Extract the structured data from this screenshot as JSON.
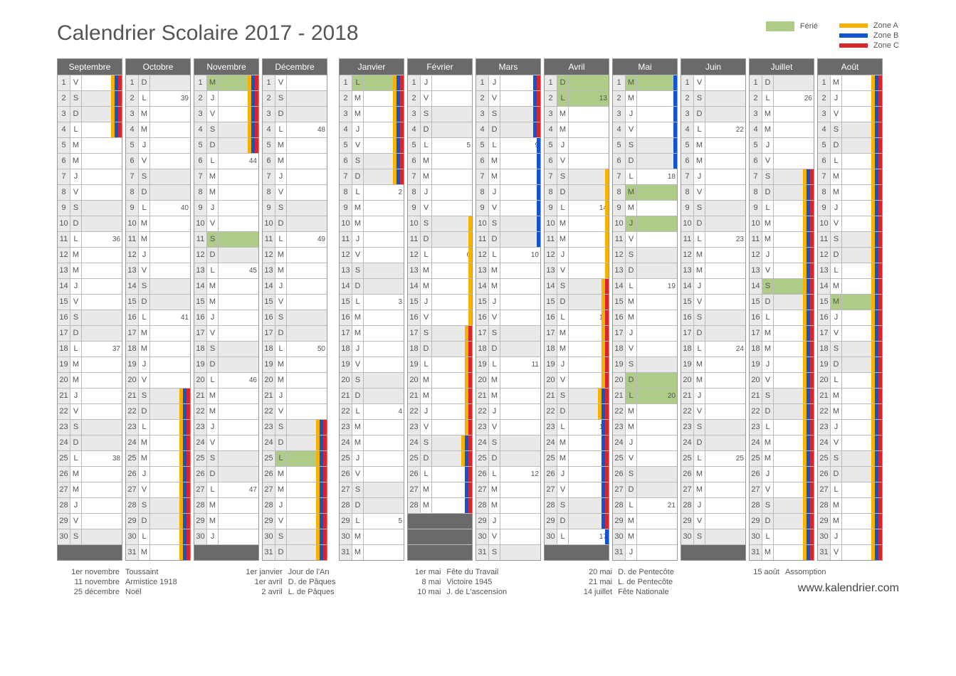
{
  "title": "Calendrier Scolaire 2017 - 2018",
  "legend": {
    "ferie_label": "Férié",
    "ferie_color": "#aecb88",
    "zones": [
      {
        "label": "Zone A",
        "color": "#f9b000"
      },
      {
        "label": "Zone B",
        "color": "#1155cc"
      },
      {
        "label": "Zone C",
        "color": "#d9262c"
      }
    ]
  },
  "colors": {
    "header_bg": "#6a6a6a",
    "weekend_bg": "#e9e9e9",
    "ferie_bg": "#aecb88",
    "border": "#999",
    "zoneA": "#f9b000",
    "zoneB": "#1155cc",
    "zoneC": "#d9262c"
  },
  "dow_letters": [
    "L",
    "M",
    "M",
    "J",
    "V",
    "S",
    "D"
  ],
  "semesters": [
    {
      "months": [
        {
          "name": "Septembre",
          "days": 30,
          "first_dow": 4,
          "first_week": 35,
          "zones": {
            "A": [
              [
                1,
                4
              ]
            ],
            "B": [
              [
                1,
                4
              ]
            ],
            "C": [
              [
                1,
                4
              ]
            ]
          }
        },
        {
          "name": "Octobre",
          "days": 31,
          "first_dow": 6,
          "first_week": 39,
          "zones": {
            "A": [
              [
                21,
                31
              ]
            ],
            "B": [
              [
                21,
                31
              ]
            ],
            "C": [
              [
                21,
                31
              ]
            ]
          }
        },
        {
          "name": "Novembre",
          "days": 30,
          "first_dow": 2,
          "first_week": 44,
          "ferie": [
            1,
            11
          ],
          "zones": {
            "A": [
              [
                1,
                5
              ]
            ],
            "B": [
              [
                1,
                5
              ]
            ],
            "C": [
              [
                1,
                5
              ]
            ]
          }
        },
        {
          "name": "Décembre",
          "days": 31,
          "first_dow": 4,
          "first_week": 48,
          "ferie": [
            25
          ],
          "zones": {
            "A": [
              [
                23,
                31
              ]
            ],
            "B": [
              [
                23,
                31
              ]
            ],
            "C": [
              [
                23,
                31
              ]
            ]
          }
        }
      ]
    },
    {
      "months": [
        {
          "name": "Janvier",
          "days": 31,
          "first_dow": 0,
          "first_week": 1,
          "ferie": [
            1
          ],
          "zones": {
            "A": [
              [
                1,
                7
              ]
            ],
            "B": [
              [
                1,
                7
              ]
            ],
            "C": [
              [
                1,
                7
              ]
            ]
          }
        },
        {
          "name": "Février",
          "days": 28,
          "first_dow": 3,
          "first_week": 5,
          "zones": {
            "A": [
              [
                10,
                25
              ]
            ],
            "B": [
              [
                24,
                28
              ]
            ],
            "C": [
              [
                17,
                28
              ]
            ]
          }
        },
        {
          "name": "Mars",
          "days": 31,
          "first_dow": 3,
          "first_week": 9,
          "zones": {
            "B": [
              [
                1,
                11
              ]
            ],
            "C": [
              [
                1,
                4
              ]
            ]
          }
        },
        {
          "name": "Avril",
          "days": 30,
          "first_dow": 6,
          "first_week": 13,
          "ferie": [
            1,
            2
          ],
          "zones": {
            "A": [
              [
                7,
                22
              ]
            ],
            "B": [
              [
                21,
                30
              ]
            ],
            "C": [
              [
                14,
                29
              ]
            ]
          }
        },
        {
          "name": "Mai",
          "days": 31,
          "first_dow": 1,
          "first_week": 18,
          "ferie": [
            1,
            8,
            10,
            20,
            21
          ],
          "zones": {
            "B": [
              [
                1,
                6
              ]
            ]
          }
        },
        {
          "name": "Juin",
          "days": 30,
          "first_dow": 4,
          "first_week": 22
        },
        {
          "name": "Juillet",
          "days": 31,
          "first_dow": 6,
          "first_week": 26,
          "ferie": [
            14
          ],
          "zones": {
            "A": [
              [
                7,
                31
              ]
            ],
            "B": [
              [
                7,
                31
              ]
            ],
            "C": [
              [
                7,
                31
              ]
            ]
          }
        },
        {
          "name": "Août",
          "days": 31,
          "first_dow": 2,
          "first_week": 31,
          "ferie": [
            15
          ],
          "zones": {
            "A": [
              [
                1,
                31
              ]
            ],
            "B": [
              [
                1,
                31
              ]
            ],
            "C": [
              [
                1,
                31
              ]
            ]
          }
        }
      ]
    }
  ],
  "footnotes": [
    [
      {
        "date": "1er novembre",
        "label": "Toussaint"
      },
      {
        "date": "11 novembre",
        "label": "Armistice 1918"
      },
      {
        "date": "25 décembre",
        "label": "Noël"
      }
    ],
    [
      {
        "date": "1er janvier",
        "label": "Jour de l'An"
      },
      {
        "date": "1er avril",
        "label": "D. de Pâques"
      },
      {
        "date": "2 avril",
        "label": "L. de Pâques"
      }
    ],
    [
      {
        "date": "1er mai",
        "label": "Fête du Travail"
      },
      {
        "date": "8 mai",
        "label": "Victoire 1945"
      },
      {
        "date": "10 mai",
        "label": "J. de L'ascension"
      }
    ],
    [
      {
        "date": "20 mai",
        "label": "D. de Pentecôte"
      },
      {
        "date": "21 mai",
        "label": "L. de Pentecôte"
      },
      {
        "date": "14 juillet",
        "label": "Fête Nationale"
      }
    ],
    [
      {
        "date": "15 août",
        "label": "Assomption"
      }
    ]
  ],
  "site": "www.kalendrier.com"
}
